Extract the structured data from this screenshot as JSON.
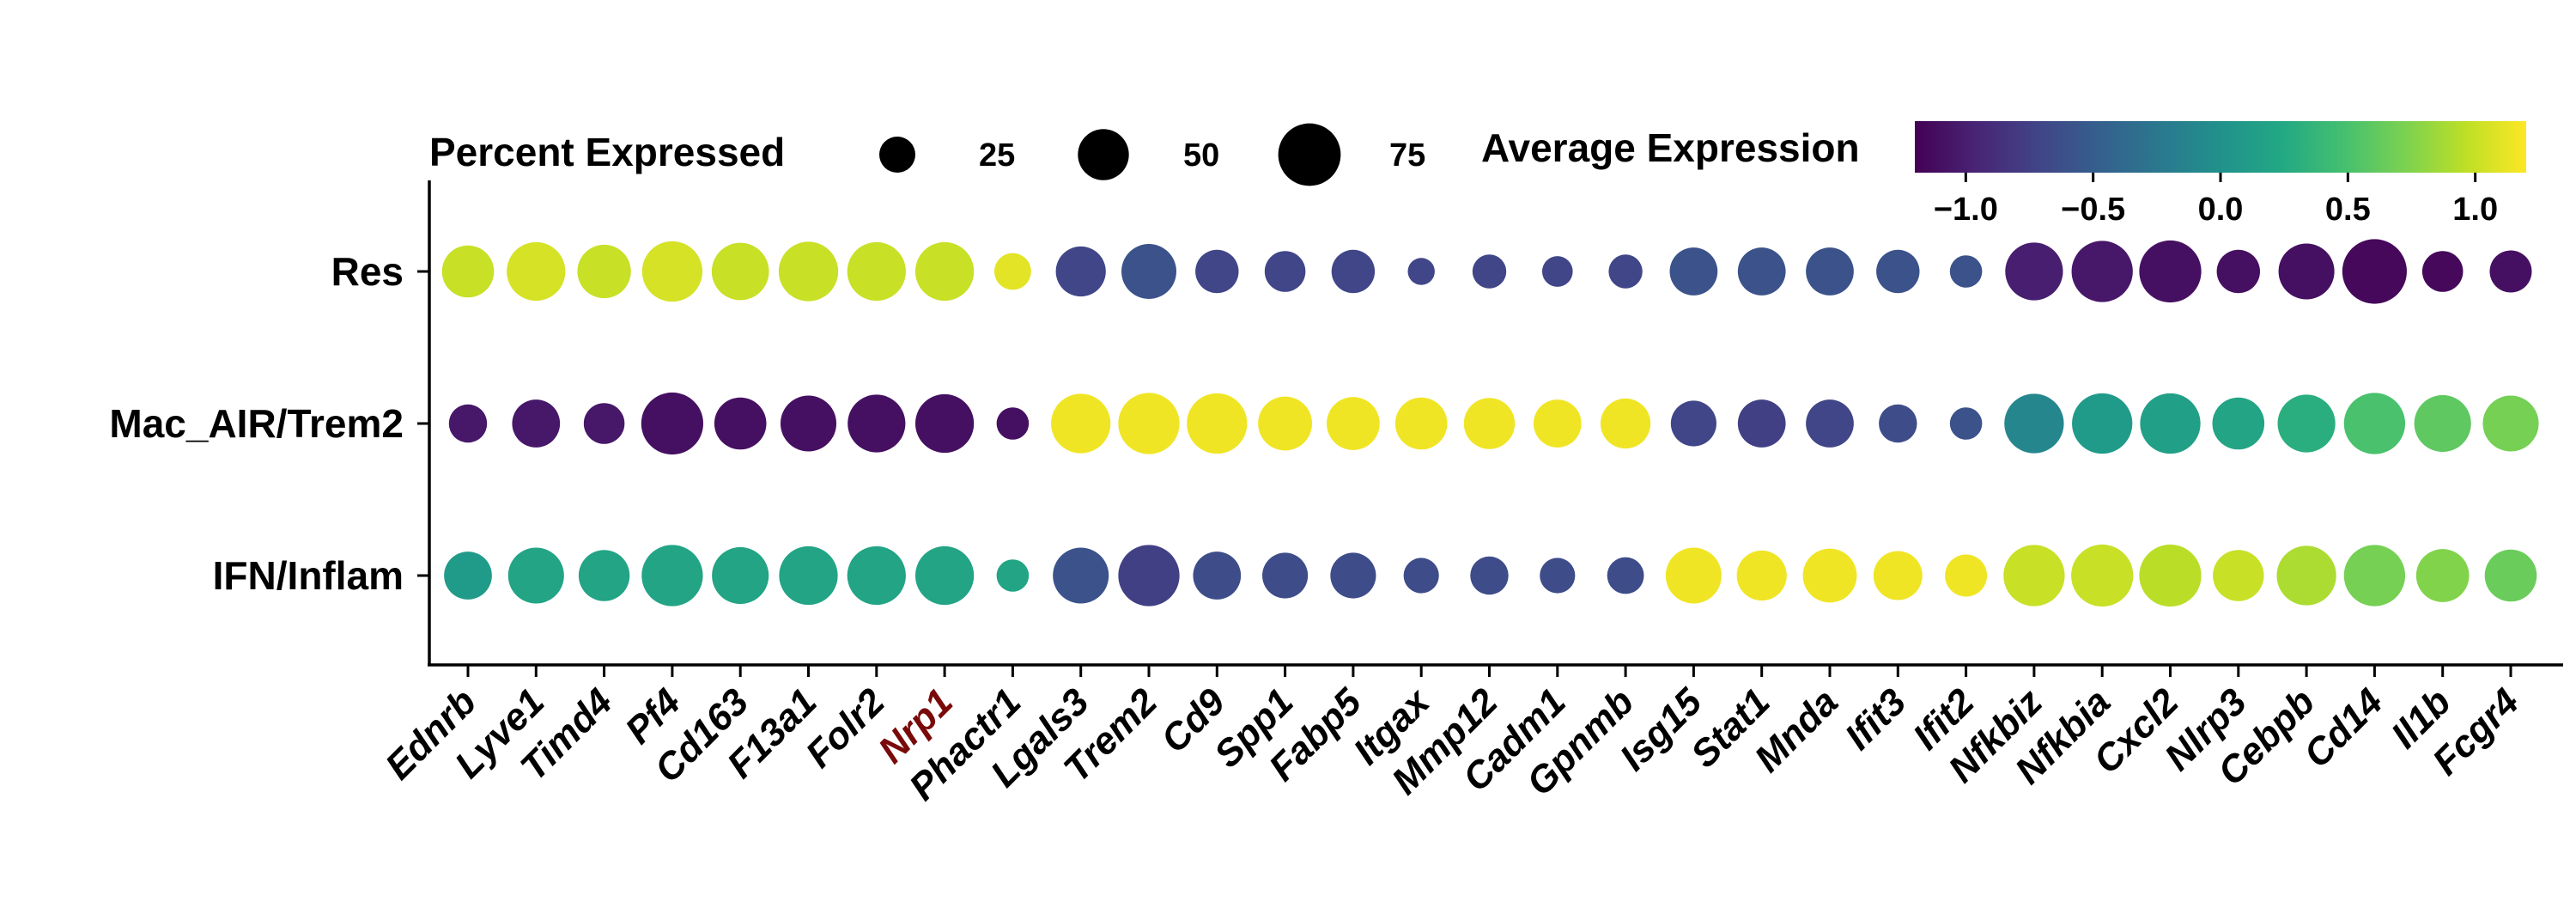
{
  "chart_data": {
    "type": "dotplot",
    "size_legend": {
      "title": "Percent Expressed",
      "values": [
        25,
        50,
        75
      ],
      "labels": [
        "25",
        "50",
        "75"
      ]
    },
    "color_legend": {
      "title": "Average Expression",
      "ticks": [
        "−1.0",
        "−0.5",
        "0.0",
        "0.5",
        "1.0"
      ],
      "tick_values": [
        -1.0,
        -0.5,
        0.0,
        0.5,
        1.0
      ],
      "range": [
        -1.2,
        1.2
      ],
      "colormap": "viridis"
    },
    "rows": [
      "Res",
      "Mac_AIR/Trem2",
      "IFN/Inflam"
    ],
    "genes": [
      "Ednrb",
      "Lyve1",
      "Timd4",
      "Pf4",
      "Cd163",
      "F13a1",
      "Folr2",
      "Nrp1",
      "Phactr1",
      "Lgals3",
      "Trem2",
      "Cd9",
      "Spp1",
      "Fabp5",
      "Itgax",
      "Mmp12",
      "Cadm1",
      "Gpnmb",
      "Isg15",
      "Stat1",
      "Mnda",
      "Ifit3",
      "Ifit2",
      "Nfkbiz",
      "Nfkbia",
      "Cxcl2",
      "Nlrp3",
      "Cebpb",
      "Cd14",
      "Il1b",
      "Fcgr4"
    ],
    "highlight_gene": "Nrp1",
    "highlight_color": "#7a0a0a",
    "avg_expression": [
      [
        1.0,
        1.05,
        1.0,
        1.05,
        1.0,
        1.0,
        1.0,
        1.0,
        1.1,
        -0.7,
        -0.6,
        -0.7,
        -0.7,
        -0.7,
        -0.7,
        -0.7,
        -0.7,
        -0.7,
        -0.6,
        -0.6,
        -0.6,
        -0.6,
        -0.6,
        -1.0,
        -1.05,
        -1.1,
        -1.1,
        -1.1,
        -1.15,
        -1.15,
        -1.1
      ],
      [
        -1.05,
        -1.05,
        -1.05,
        -1.1,
        -1.1,
        -1.1,
        -1.1,
        -1.1,
        -1.1,
        1.15,
        1.15,
        1.15,
        1.15,
        1.15,
        1.15,
        1.15,
        1.15,
        1.15,
        -0.7,
        -0.75,
        -0.7,
        -0.65,
        -0.6,
        -0.1,
        0.1,
        0.15,
        0.2,
        0.3,
        0.5,
        0.6,
        0.7
      ],
      [
        0.1,
        0.2,
        0.2,
        0.2,
        0.2,
        0.2,
        0.2,
        0.2,
        0.2,
        -0.6,
        -0.75,
        -0.65,
        -0.65,
        -0.65,
        -0.65,
        -0.65,
        -0.65,
        -0.65,
        1.15,
        1.15,
        1.15,
        1.15,
        1.15,
        1.0,
        1.0,
        0.95,
        1.0,
        0.9,
        0.7,
        0.75,
        0.65
      ]
    ],
    "pct_expressed": [
      [
        52,
        66,
        55,
        70,
        63,
        68,
        66,
        66,
        26,
        48,
        58,
        36,
        32,
        36,
        14,
        22,
        18,
        22,
        44,
        44,
        44,
        36,
        20,
        64,
        72,
        74,
        36,
        60,
        80,
        32,
        34
      ],
      [
        28,
        44,
        32,
        74,
        52,
        60,
        64,
        66,
        20,
        68,
        72,
        70,
        56,
        54,
        52,
        50,
        44,
        48,
        40,
        44,
        44,
        28,
        20,
        68,
        70,
        70,
        52,
        64,
        72,
        62,
        60
      ],
      [
        44,
        60,
        50,
        72,
        62,
        66,
        66,
        66,
        20,
        60,
        72,
        44,
        40,
        40,
        24,
        28,
        24,
        26,
        60,
        48,
        56,
        46,
        34,
        72,
        74,
        74,
        50,
        68,
        72,
        54,
        52
      ]
    ]
  }
}
